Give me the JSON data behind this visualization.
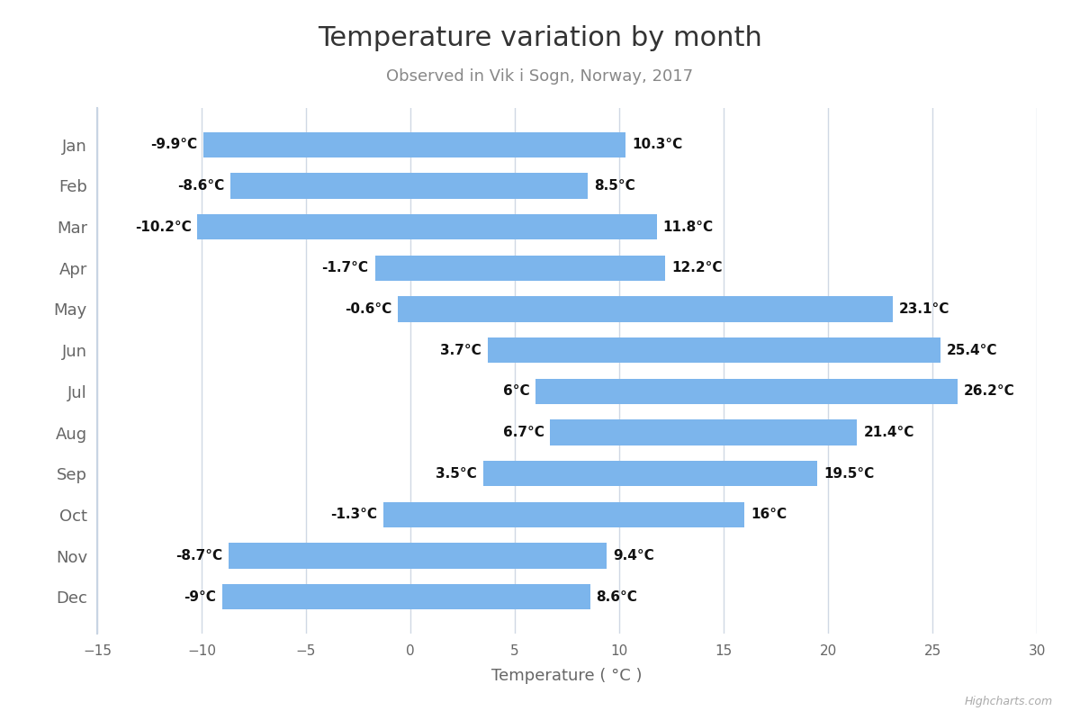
{
  "title": "Temperature variation by month",
  "subtitle": "Observed in Vik i Sogn, Norway, 2017",
  "xlabel": "Temperature ( °C )",
  "watermark": "Highcharts.com",
  "months": [
    "Jan",
    "Feb",
    "Mar",
    "Apr",
    "May",
    "Jun",
    "Jul",
    "Aug",
    "Sep",
    "Oct",
    "Nov",
    "Dec"
  ],
  "low": [
    -9.9,
    -8.6,
    -10.2,
    -1.7,
    -0.6,
    3.7,
    6.0,
    6.7,
    3.5,
    -1.3,
    -8.7,
    -9.0
  ],
  "high": [
    10.3,
    8.5,
    11.8,
    12.2,
    23.1,
    25.4,
    26.2,
    21.4,
    19.5,
    16.0,
    9.4,
    8.6
  ],
  "bar_color": "#7cb5ec",
  "bar_height": 0.62,
  "xlim": [
    -15,
    30
  ],
  "xticks": [
    -15,
    -10,
    -5,
    0,
    5,
    10,
    15,
    20,
    25,
    30
  ],
  "background_color": "#ffffff",
  "plot_background_color": "#ffffff",
  "grid_color": "#d0d8e4",
  "title_fontsize": 22,
  "subtitle_fontsize": 13,
  "month_fontsize": 13,
  "tick_fontsize": 11,
  "annotation_fontsize": 11,
  "xlabel_fontsize": 13
}
